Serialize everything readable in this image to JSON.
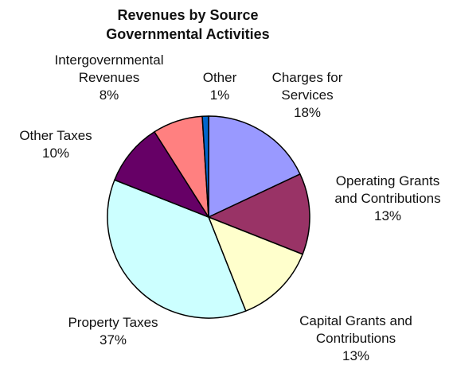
{
  "chart_data": {
    "type": "pie",
    "title": [
      "Revenues by Source",
      "Governmental Activities"
    ],
    "slice_outline": "#000000",
    "legend": "none",
    "slices": [
      {
        "key": "charges",
        "label": [
          "Charges for",
          "Services"
        ],
        "percent_label": "18%",
        "value": 18,
        "color": "#9999ff"
      },
      {
        "key": "operating",
        "label": [
          "Operating Grants",
          "and Contributions"
        ],
        "percent_label": "13%",
        "value": 13,
        "color": "#993366"
      },
      {
        "key": "capital",
        "label": [
          "Capital Grants and",
          "Contributions"
        ],
        "percent_label": "13%",
        "value": 13,
        "color": "#ffffcc"
      },
      {
        "key": "property",
        "label": [
          "Property Taxes"
        ],
        "percent_label": "37%",
        "value": 37,
        "color": "#ccffff"
      },
      {
        "key": "other-taxes",
        "label": [
          "Other Taxes"
        ],
        "percent_label": "10%",
        "value": 10,
        "color": "#660066"
      },
      {
        "key": "intergov",
        "label": [
          "Intergovernmental",
          "Revenues"
        ],
        "percent_label": "8%",
        "value": 8,
        "color": "#ff8080"
      },
      {
        "key": "other",
        "label": [
          "Other"
        ],
        "percent_label": "1%",
        "value": 1,
        "color": "#0066cc"
      }
    ]
  }
}
